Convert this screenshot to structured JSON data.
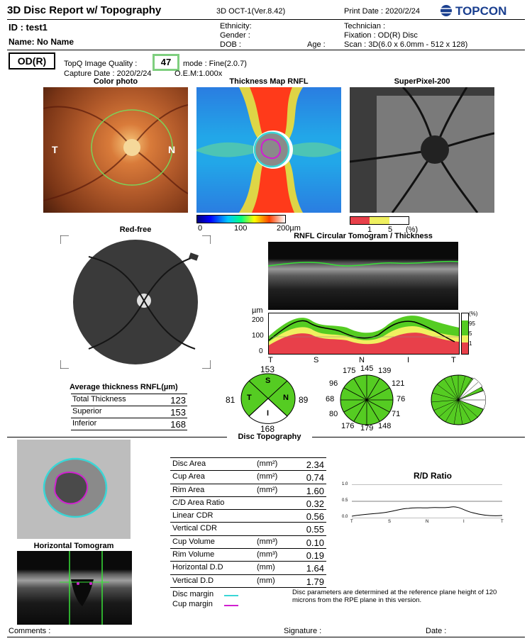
{
  "header": {
    "title": "3D Disc Report w/ Topography",
    "device": "3D OCT-1(Ver.8.42)",
    "print_date": "Print Date : 2020/2/24",
    "logo": "TOPCON",
    "id": "ID : test1",
    "name": "Name: No Name",
    "ethnicity": "Ethnicity:",
    "gender": "Gender :",
    "dob": "DOB :",
    "age": "Age :",
    "technician": "Technician :",
    "fixation": "Fixation : OD(R) Disc",
    "scan": "Scan : 3D(6.0 x 6.0mm - 512 x 128)"
  },
  "eye": "OD(R)",
  "quality": {
    "label": "TopQ Image Quality :",
    "value": "47",
    "mode": "mode : Fine(2.0.7)",
    "capture": "Capture Date : 2020/2/24",
    "oem": "O.E.M:1.000x"
  },
  "panels": {
    "color_photo": "Color photo",
    "thickness_map": "Thickness Map RNFL",
    "superpixel": "SuperPixel-200",
    "red_free": "Red-free",
    "circular": "RNFL Circular Tomogram / Thickness",
    "disc_topo": "Disc Topography",
    "horiz_tomo": "Horizontal Tomogram",
    "rd_ratio": "R/D Ratio"
  },
  "photo_labels": {
    "temporal": "T",
    "nasal": "N"
  },
  "thickness_scale": {
    "ticks": [
      "0",
      "100",
      "200µm"
    ]
  },
  "superpixel_scale": {
    "ticks": [
      "1",
      "5",
      "(%)"
    ]
  },
  "thickness_chart": {
    "unit": "µm",
    "yticks": [
      "200",
      "100",
      "0"
    ],
    "xticks": [
      "T",
      "S",
      "N",
      "I",
      "T"
    ],
    "legend": [
      "(%)",
      "95",
      "5",
      "1"
    ]
  },
  "average_thickness": {
    "title": "Average thickness RNFL(µm)",
    "rows": [
      {
        "label": "Total Thickness",
        "value": "123"
      },
      {
        "label": "Superior",
        "value": "153"
      },
      {
        "label": "Inferior",
        "value": "168"
      }
    ]
  },
  "quadrant": {
    "S": "S",
    "T": "T",
    "N": "N",
    "I": "I",
    "top": "153",
    "left": "81",
    "right": "89",
    "bottom": "168"
  },
  "clock": {
    "values": [
      "175",
      "145",
      "139",
      "96",
      "121",
      "68",
      "76",
      "80",
      "71",
      "176",
      "179",
      "148"
    ]
  },
  "disc_params": {
    "rows": [
      {
        "label": "Disc Area",
        "unit": "(mm²)",
        "value": "2.34"
      },
      {
        "label": "Cup Area",
        "unit": "(mm²)",
        "value": "0.74"
      },
      {
        "label": "Rim Area",
        "unit": "(mm²)",
        "value": "1.60"
      },
      {
        "label": "C/D Area Ratio",
        "unit": "",
        "value": "0.32"
      },
      {
        "label": "Linear CDR",
        "unit": "",
        "value": "0.56"
      },
      {
        "label": "Vertical CDR",
        "unit": "",
        "value": "0.55"
      },
      {
        "label": "Cup Volume",
        "unit": "(mm³)",
        "value": "0.10"
      },
      {
        "label": "Rim Volume",
        "unit": "(mm³)",
        "value": "0.19"
      },
      {
        "label": "Horizontal D.D",
        "unit": "(mm)",
        "value": "1.64"
      },
      {
        "label": "Vertical D.D",
        "unit": "(mm)",
        "value": "1.79"
      }
    ]
  },
  "rd_chart": {
    "yticks": [
      "1.0",
      "0.5",
      "0.0"
    ],
    "xticks": [
      "T",
      "S",
      "N",
      "I",
      "T"
    ]
  },
  "legend_margins": {
    "disc": "Disc margin",
    "cup": "Cup margin"
  },
  "note": "Disc parameters are determined at the reference plane height of 120 microns from the RPE plane in this version.",
  "footer": {
    "comments": "Comments :",
    "signature": "Signature :",
    "date": "Date :"
  },
  "colors": {
    "disc_margin": "#3ad6d6",
    "cup_margin": "#d020d0",
    "normal_green": "#55cc22",
    "border_yellow": "#f0f060",
    "abnormal_red": "#e8404a",
    "quality_box": "#7fcf7f"
  }
}
